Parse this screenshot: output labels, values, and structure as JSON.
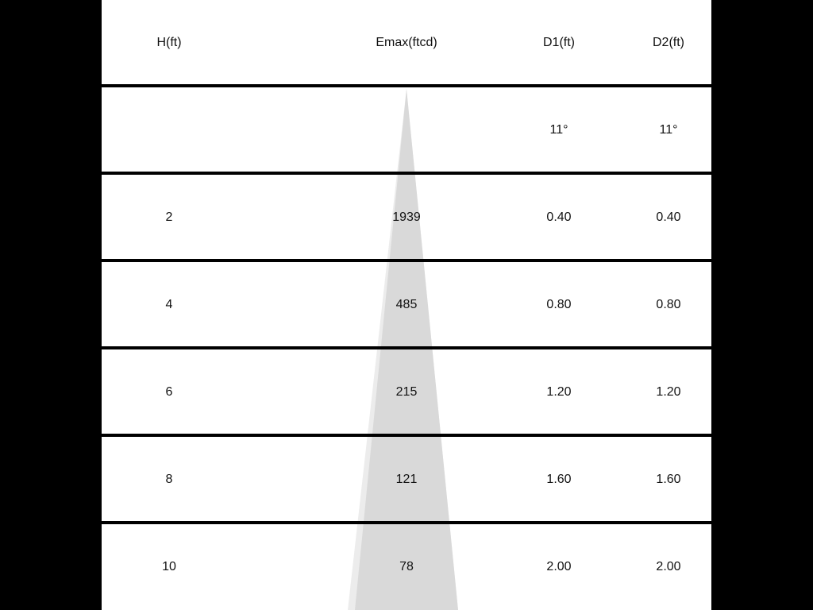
{
  "chart_data": {
    "type": "table",
    "columns": [
      "H(ft)",
      "Emax(ftcd)",
      "D1(ft)",
      "D2(ft)"
    ],
    "beam_angle_row": [
      "",
      "",
      "11°",
      "11°"
    ],
    "rows": [
      [
        "2",
        "1939",
        "0.40",
        "0.40"
      ],
      [
        "4",
        "485",
        "0.80",
        "0.80"
      ],
      [
        "6",
        "215",
        "1.20",
        "1.20"
      ],
      [
        "8",
        "121",
        "1.60",
        "1.60"
      ],
      [
        "10",
        "78",
        "2.00",
        "2.00"
      ]
    ],
    "colors": {
      "cone": "#d9d9d9",
      "cone_edge": "#ececec",
      "rules": "#000000",
      "background": "#000000"
    }
  }
}
